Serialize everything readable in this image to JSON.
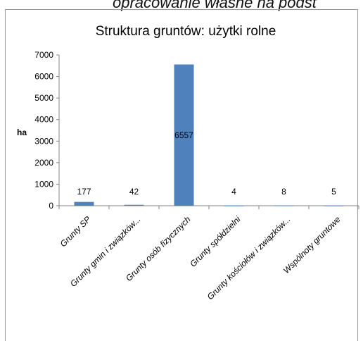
{
  "page": {
    "caption": "opracowanie własne na podst"
  },
  "chart_data": {
    "type": "bar",
    "title": "Struktura gruntów: użytki rolne",
    "ylabel": "ha",
    "xlabel": "",
    "categories": [
      "Grunty SP",
      "Grunty gmin i związków...",
      "Grunty osób fizycznych",
      "Grunty spółdzielni",
      "Grunty kościołów i związków...",
      "Wspólnoty gruntowe"
    ],
    "values": [
      177,
      42,
      6557,
      4,
      8,
      5
    ],
    "data_labels": [
      "177",
      "42",
      "6557",
      "4",
      "8",
      "5"
    ],
    "ylim": [
      0,
      7000
    ],
    "yticks": [
      0,
      1000,
      2000,
      3000,
      4000,
      5000,
      6000,
      7000
    ],
    "grid": false,
    "legend": "none",
    "colors": {
      "bar": "#4f81bd",
      "axis": "#868686"
    }
  }
}
